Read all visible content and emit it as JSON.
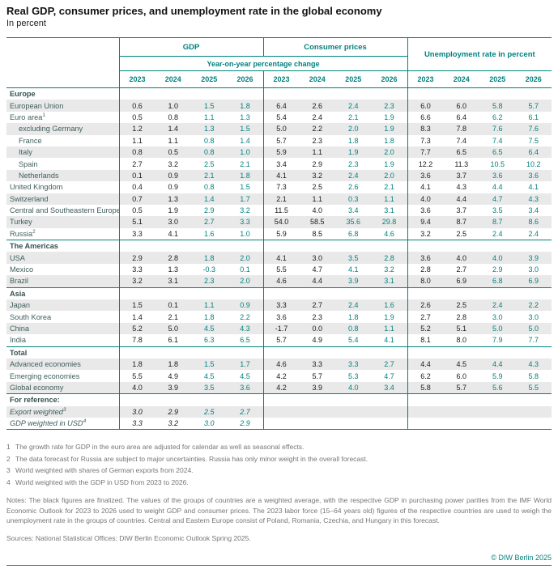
{
  "title": "Real GDP, consumer prices, and unemployment rate in the global economy",
  "subtitle": "In percent",
  "colors": {
    "teal": "#00827e",
    "finalized_black": "#1a1a1a",
    "stripe_gray": "#e9e9e9"
  },
  "chart_data": {
    "type": "table",
    "group_headers": [
      "GDP",
      "Consumer prices",
      "Unemployment rate in percent"
    ],
    "span_header": "Year-on-year percentage change",
    "years": [
      "2023",
      "2024",
      "2025",
      "2026"
    ],
    "rows": [
      {
        "type": "section",
        "label": "Europe"
      },
      {
        "type": "data",
        "label": "European Union",
        "gdp": [
          "0.6",
          "1.0",
          "1.5",
          "1.8"
        ],
        "cp": [
          "6.4",
          "2.6",
          "2.4",
          "2.3"
        ],
        "ur": [
          "6.0",
          "6.0",
          "5.8",
          "5.7"
        ]
      },
      {
        "type": "data",
        "label": "Euro area",
        "sup": "1",
        "gdp": [
          "0.5",
          "0.8",
          "1.1",
          "1.3"
        ],
        "cp": [
          "5.4",
          "2.4",
          "2.1",
          "1.9"
        ],
        "ur": [
          "6.6",
          "6.4",
          "6.2",
          "6.1"
        ]
      },
      {
        "type": "data",
        "label": "excluding Germany",
        "indent": true,
        "gdp": [
          "1.2",
          "1.4",
          "1.3",
          "1.5"
        ],
        "cp": [
          "5.0",
          "2.2",
          "2.0",
          "1.9"
        ],
        "ur": [
          "8.3",
          "7.8",
          "7.6",
          "7.6"
        ]
      },
      {
        "type": "data",
        "label": "France",
        "indent": true,
        "gdp": [
          "1.1",
          "1.1",
          "0.8",
          "1.4"
        ],
        "cp": [
          "5.7",
          "2.3",
          "1.8",
          "1.8"
        ],
        "ur": [
          "7.3",
          "7.4",
          "7.4",
          "7.5"
        ]
      },
      {
        "type": "data",
        "label": "Italy",
        "indent": true,
        "gdp": [
          "0.8",
          "0.5",
          "0.8",
          "1.0"
        ],
        "cp": [
          "5.9",
          "1.1",
          "1.9",
          "2.0"
        ],
        "ur": [
          "7.7",
          "6.5",
          "6.5",
          "6.4"
        ]
      },
      {
        "type": "data",
        "label": "Spain",
        "indent": true,
        "gdp": [
          "2.7",
          "3.2",
          "2.5",
          "2.1"
        ],
        "cp": [
          "3.4",
          "2.9",
          "2.3",
          "1.9"
        ],
        "ur": [
          "12.2",
          "11.3",
          "10.5",
          "10.2"
        ]
      },
      {
        "type": "data",
        "label": "Netherlands",
        "indent": true,
        "gdp": [
          "0.1",
          "0.9",
          "2.1",
          "1.8"
        ],
        "cp": [
          "4.1",
          "3.2",
          "2.4",
          "2.0"
        ],
        "ur": [
          "3.6",
          "3.7",
          "3.6",
          "3.6"
        ]
      },
      {
        "type": "data",
        "label": "United Kingdom",
        "gdp": [
          "0.4",
          "0.9",
          "0.8",
          "1.5"
        ],
        "cp": [
          "7.3",
          "2.5",
          "2.6",
          "2.1"
        ],
        "ur": [
          "4.1",
          "4.3",
          "4.4",
          "4.1"
        ]
      },
      {
        "type": "data",
        "label": "Switzerland",
        "gdp": [
          "0.7",
          "1.3",
          "1.4",
          "1.7"
        ],
        "cp": [
          "2.1",
          "1.1",
          "0.3",
          "1.1"
        ],
        "ur": [
          "4.0",
          "4.4",
          "4.7",
          "4.3"
        ]
      },
      {
        "type": "data",
        "label": "Central and Southeastern Europe",
        "gdp": [
          "0.5",
          "1.9",
          "2.9",
          "3.2"
        ],
        "cp": [
          "11.5",
          "4.0",
          "3.4",
          "3.1"
        ],
        "ur": [
          "3.6",
          "3.7",
          "3.5",
          "3.4"
        ]
      },
      {
        "type": "data",
        "label": "Turkey",
        "gdp": [
          "5.1",
          "3.0",
          "2.7",
          "3.3"
        ],
        "cp": [
          "54.0",
          "58.5",
          "35.6",
          "29.8"
        ],
        "ur": [
          "9.4",
          "8.7",
          "8.7",
          "8.6"
        ]
      },
      {
        "type": "data",
        "label": "Russia",
        "sup": "2",
        "gdp": [
          "3.3",
          "4.1",
          "1.6",
          "1.0"
        ],
        "cp": [
          "5.9",
          "8.5",
          "6.8",
          "4.6"
        ],
        "ur": [
          "3.2",
          "2.5",
          "2.4",
          "2.4"
        ]
      },
      {
        "type": "section",
        "label": "The Americas"
      },
      {
        "type": "data",
        "label": "USA",
        "gdp": [
          "2.9",
          "2.8",
          "1.8",
          "2.0"
        ],
        "cp": [
          "4.1",
          "3.0",
          "3.5",
          "2.8"
        ],
        "ur": [
          "3.6",
          "4.0",
          "4.0",
          "3.9"
        ]
      },
      {
        "type": "data",
        "label": "Mexico",
        "gdp": [
          "3.3",
          "1.3",
          "-0.3",
          "0.1"
        ],
        "cp": [
          "5.5",
          "4.7",
          "4.1",
          "3.2"
        ],
        "ur": [
          "2.8",
          "2.7",
          "2.9",
          "3.0"
        ]
      },
      {
        "type": "data",
        "label": "Brazil",
        "gdp": [
          "3.2",
          "3.1",
          "2.3",
          "2.0"
        ],
        "cp": [
          "4.6",
          "4.4",
          "3.9",
          "3.1"
        ],
        "ur": [
          "8.0",
          "6.9",
          "6.8",
          "6.9"
        ]
      },
      {
        "type": "section",
        "label": "Asia"
      },
      {
        "type": "data",
        "label": "Japan",
        "gdp": [
          "1.5",
          "0.1",
          "1.1",
          "0.9"
        ],
        "cp": [
          "3.3",
          "2.7",
          "2.4",
          "1.6"
        ],
        "ur": [
          "2.6",
          "2.5",
          "2.4",
          "2.2"
        ]
      },
      {
        "type": "data",
        "label": "South Korea",
        "gdp": [
          "1.4",
          "2.1",
          "1.8",
          "2.2"
        ],
        "cp": [
          "3.6",
          "2.3",
          "1.8",
          "1.9"
        ],
        "ur": [
          "2.7",
          "2.8",
          "3.0",
          "3.0"
        ]
      },
      {
        "type": "data",
        "label": "China",
        "gdp": [
          "5.2",
          "5.0",
          "4.5",
          "4.3"
        ],
        "cp": [
          "-1.7",
          "0.0",
          "0.8",
          "1.1"
        ],
        "ur": [
          "5.2",
          "5.1",
          "5.0",
          "5.0"
        ]
      },
      {
        "type": "data",
        "label": "India",
        "gdp": [
          "7.8",
          "6.1",
          "6.3",
          "6.5"
        ],
        "cp": [
          "5.7",
          "4.9",
          "5.4",
          "4.1"
        ],
        "ur": [
          "8.1",
          "8.0",
          "7.9",
          "7.7"
        ]
      },
      {
        "type": "section",
        "label": "Total"
      },
      {
        "type": "data",
        "label": "Advanced economies",
        "gdp": [
          "1.8",
          "1.8",
          "1.5",
          "1.7"
        ],
        "cp": [
          "4.6",
          "3.3",
          "3.3",
          "2.7"
        ],
        "ur": [
          "4.4",
          "4.5",
          "4.4",
          "4.3"
        ]
      },
      {
        "type": "data",
        "label": "Emerging economies",
        "gdp": [
          "5.5",
          "4.9",
          "4.5",
          "4.5"
        ],
        "cp": [
          "4.2",
          "5.7",
          "5.3",
          "4.7"
        ],
        "ur": [
          "6.2",
          "6.0",
          "5.9",
          "5.8"
        ]
      },
      {
        "type": "data",
        "label": "Global economy",
        "gdp": [
          "4.0",
          "3.9",
          "3.5",
          "3.6"
        ],
        "cp": [
          "4.2",
          "3.9",
          "4.0",
          "3.4"
        ],
        "ur": [
          "5.8",
          "5.7",
          "5.6",
          "5.5"
        ]
      },
      {
        "type": "section",
        "label": "For reference:"
      },
      {
        "type": "data",
        "label": "Export weighted",
        "sup": "3",
        "italic": true,
        "gdp": [
          "3.0",
          "2.9",
          "2.5",
          "2.7"
        ],
        "cp": [
          "",
          "",
          "",
          ""
        ],
        "ur": [
          "",
          "",
          "",
          ""
        ]
      },
      {
        "type": "data",
        "label": "GDP weighted in USD",
        "sup": "4",
        "italic": true,
        "gdp": [
          "3.3",
          "3.2",
          "3.0",
          "2.9"
        ],
        "cp": [
          "",
          "",
          "",
          ""
        ],
        "ur": [
          "",
          "",
          "",
          ""
        ]
      }
    ]
  },
  "footnotes": [
    {
      "num": "1",
      "text": "The growth rate for GDP in the euro area are adjusted for calendar as well as seasonal effects."
    },
    {
      "num": "2",
      "text": "The data forecast for Russia are subject to major uncertainties. Russia has only minor weight in the overall forecast."
    },
    {
      "num": "3",
      "text": "World weighted with shares of German exports from 2024."
    },
    {
      "num": "4",
      "text": "World weighted with the GDP in USD from 2023 to 2026."
    }
  ],
  "notes": "Notes: The black figures are finalized. The values of the groups of countries are a weighted average, with the respective GDP in purchasing power parities from the IMF World Economic Outlook for 2023 to 2026 used to weight GDP and consumer prices. The 2023 labor force (15–64 years old) figures of the respective countries are used to weigh the unemployment rate in the groups of countries. Central and Eastern Europe consist of Poland, Romania, Czechia, and Hungary in this forecast.",
  "sources": "Sources: National Statistical Offices; DIW Berlin Economic Outlook Spring 2025.",
  "copyright": "© DIW Berlin 2025"
}
